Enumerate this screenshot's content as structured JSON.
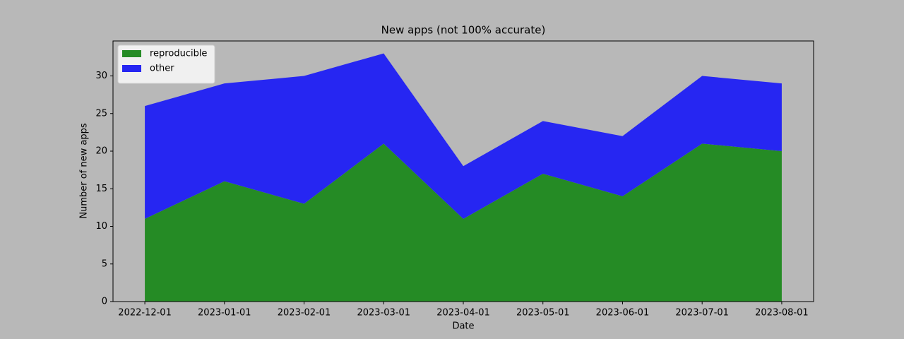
{
  "chart_data": {
    "type": "stacked_area",
    "title": "New apps (not 100% accurate)",
    "x_label": "Date",
    "y_label": "Number of new apps",
    "categories": [
      "2022-12-01",
      "2023-01-01",
      "2023-02-01",
      "2023-03-01",
      "2023-04-01",
      "2023-05-01",
      "2023-06-01",
      "2023-07-01",
      "2023-08-01"
    ],
    "series": [
      {
        "name": "reproducible",
        "color": "#258b25",
        "values": [
          11,
          16,
          13,
          21,
          11,
          17,
          14,
          21,
          20
        ]
      },
      {
        "name": "other",
        "color": "#2626f2",
        "values": [
          15,
          13,
          17,
          12,
          7,
          7,
          8,
          9,
          9
        ]
      }
    ],
    "ylim": [
      0,
      34.65
    ],
    "yticks": [
      0,
      5,
      10,
      15,
      20,
      25,
      30
    ],
    "legend": "upper left"
  }
}
